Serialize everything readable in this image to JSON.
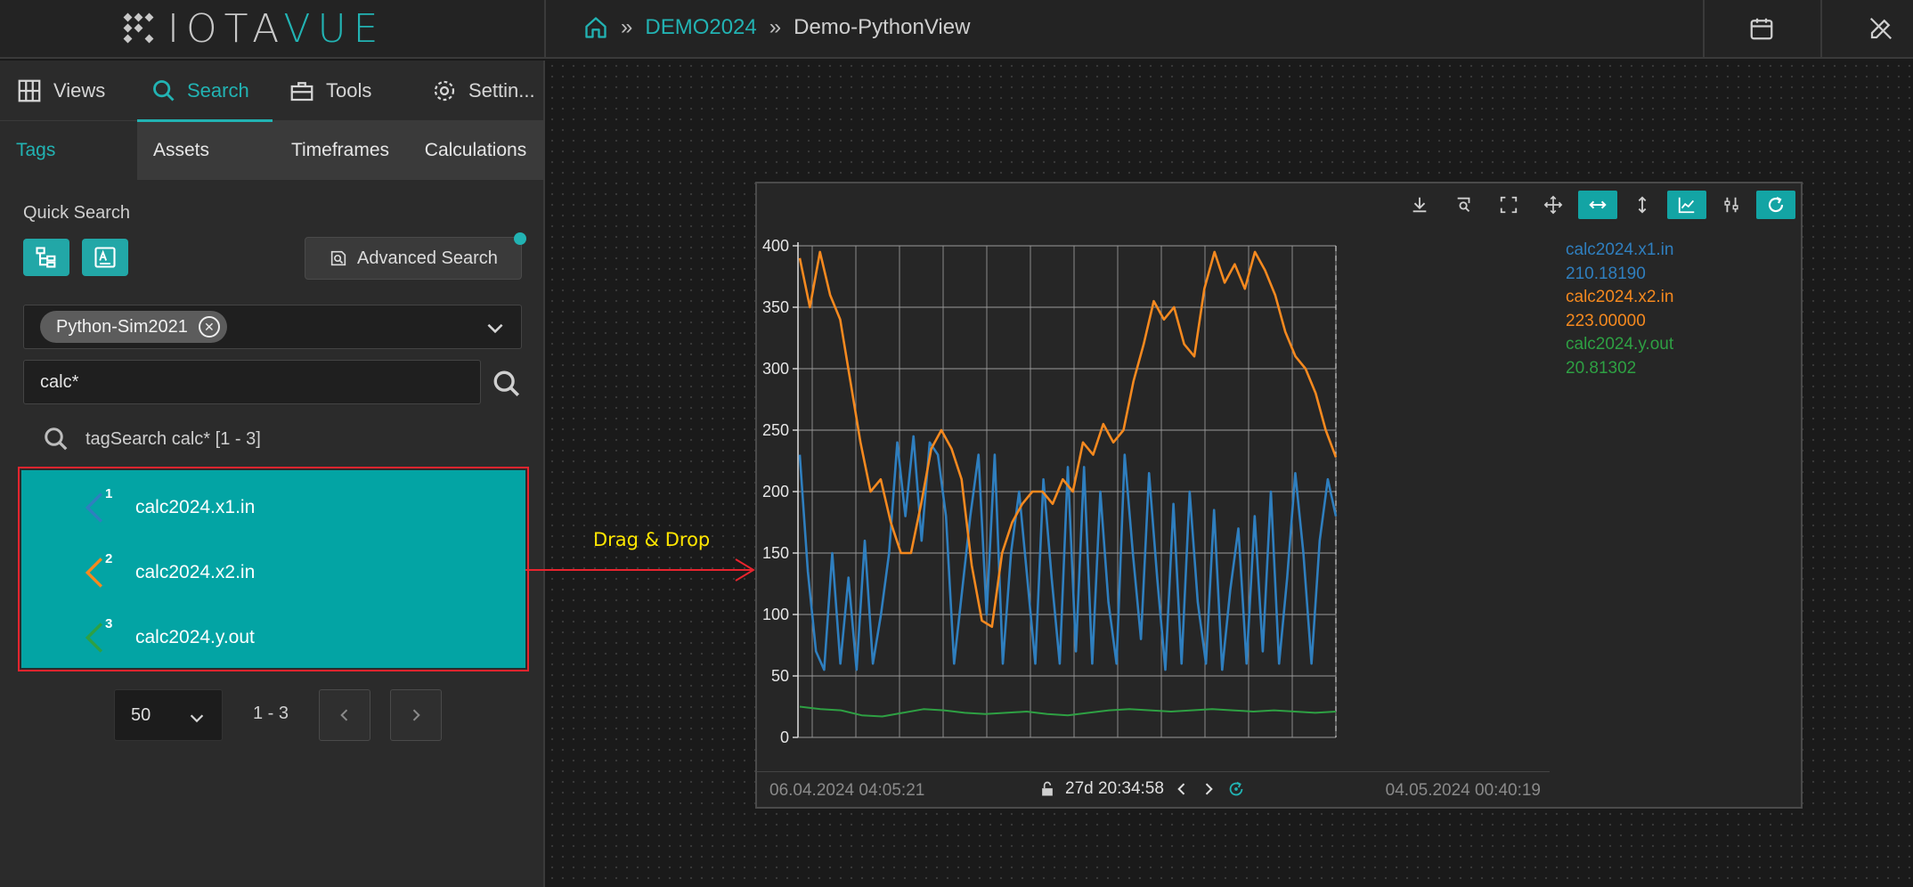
{
  "header": {
    "logo": {
      "prefix": "IOTA",
      "suffix": "VUE"
    },
    "breadcrumb": [
      {
        "label": "DEMO2024"
      },
      {
        "label": "Demo-PythonView"
      }
    ],
    "icons": [
      "calendar-icon",
      "edit-off-icon"
    ]
  },
  "sidebar": {
    "main_tabs": [
      {
        "label": "Views",
        "icon": "grid-icon"
      },
      {
        "label": "Search",
        "icon": "search-icon",
        "active": true
      },
      {
        "label": "Tools",
        "icon": "toolbox-icon"
      },
      {
        "label": "Settin...",
        "icon": "gear-icon"
      }
    ],
    "sub_tabs": [
      {
        "label": "Tags",
        "active": true
      },
      {
        "label": "Assets"
      },
      {
        "label": "Timeframes"
      },
      {
        "label": "Calculations"
      }
    ],
    "quick_search_label": "Quick Search",
    "advanced_search_label": "Advanced Search",
    "source_chip": "Python-Sim2021",
    "search_value": "calc*",
    "result_header": "tagSearch calc* [1 - 3]",
    "results": [
      {
        "num": "1",
        "label": "calc2024.x1.in",
        "color": "#2f7fbf"
      },
      {
        "num": "2",
        "label": "calc2024.x2.in",
        "color": "#f5891f"
      },
      {
        "num": "3",
        "label": "calc2024.y.out",
        "color": "#2ea043"
      }
    ],
    "page_size": "50",
    "page_range": "1 - 3"
  },
  "canvas": {
    "drag_drop_label": "Drag & Drop"
  },
  "chart_data": {
    "type": "line",
    "ylim": [
      0,
      400
    ],
    "yticks": [
      0,
      50,
      100,
      150,
      200,
      250,
      300,
      350,
      400
    ],
    "x_start": "06.04.2024 04:05:21",
    "x_end": "04.05.2024 00:40:19",
    "duration": "27d 20:34:58",
    "grid": true,
    "legend_position": "right",
    "series": [
      {
        "name": "calc2024.x1.in",
        "value": "210.18190",
        "color": "#2f7fbf",
        "values": [
          230,
          135,
          70,
          55,
          150,
          60,
          130,
          55,
          160,
          60,
          100,
          150,
          240,
          180,
          245,
          160,
          240,
          230,
          180,
          60,
          120,
          180,
          230,
          100,
          230,
          60,
          150,
          200,
          130,
          60,
          210,
          130,
          60,
          220,
          70,
          220,
          60,
          200,
          110,
          60,
          230,
          150,
          80,
          215,
          130,
          55,
          190,
          60,
          200,
          110,
          60,
          185,
          55,
          120,
          170,
          60,
          180,
          70,
          200,
          60,
          130,
          215,
          150,
          60,
          160,
          210,
          180
        ]
      },
      {
        "name": "calc2024.x2.in",
        "value": "223.00000",
        "color": "#f5891f",
        "values": [
          390,
          350,
          395,
          360,
          340,
          290,
          240,
          200,
          210,
          175,
          150,
          150,
          190,
          235,
          250,
          235,
          210,
          140,
          95,
          90,
          150,
          175,
          190,
          200,
          200,
          190,
          210,
          200,
          240,
          230,
          255,
          240,
          250,
          290,
          320,
          355,
          340,
          350,
          320,
          310,
          365,
          395,
          370,
          385,
          365,
          395,
          380,
          360,
          330,
          310,
          300,
          280,
          250,
          228
        ]
      },
      {
        "name": "calc2024.y.out",
        "value": "20.81302",
        "color": "#2ea043",
        "values": [
          25,
          23,
          22,
          18,
          17,
          20,
          23,
          22,
          20,
          19,
          20,
          21,
          19,
          18,
          20,
          22,
          23,
          22,
          21,
          22,
          23,
          22,
          21,
          22,
          21,
          20,
          21
        ]
      }
    ]
  }
}
